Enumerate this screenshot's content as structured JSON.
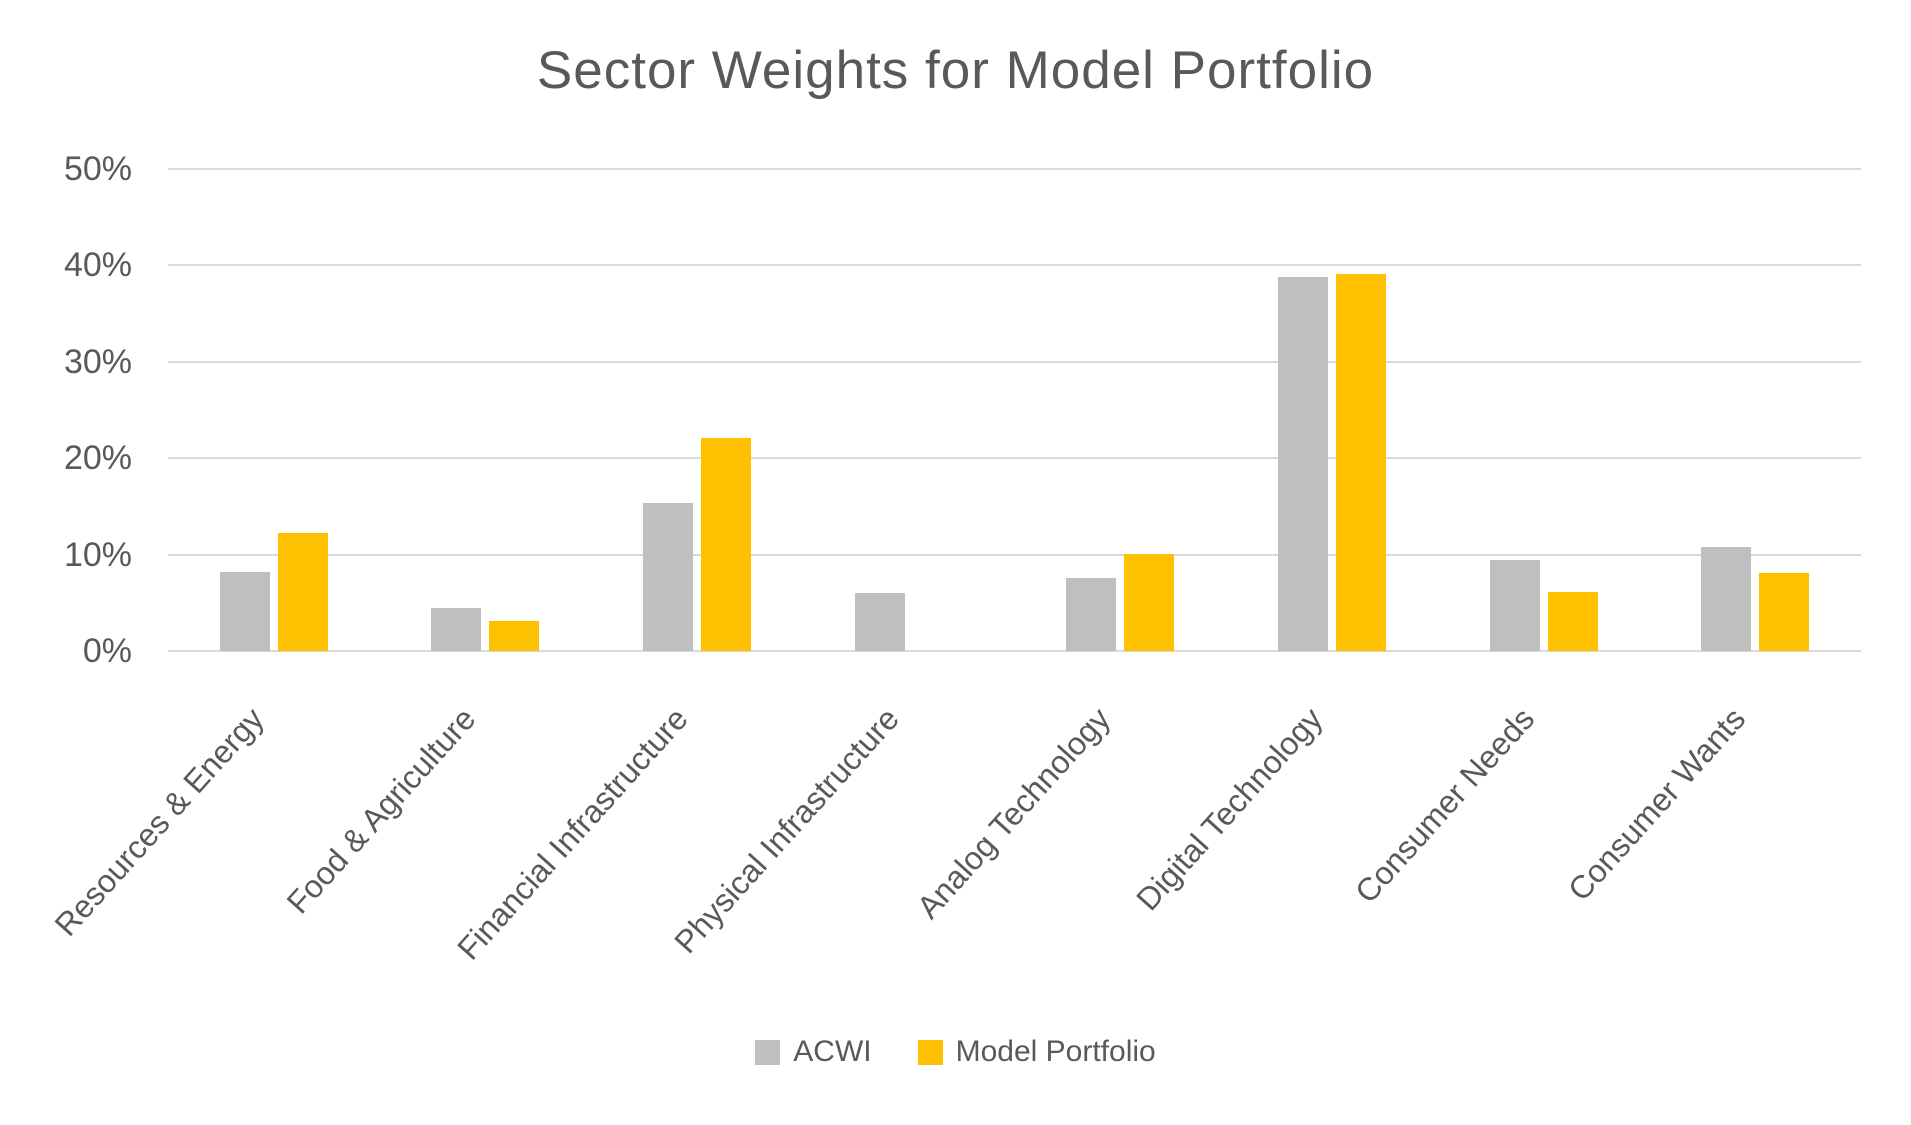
{
  "colors": {
    "background": "#FFFFFF",
    "text": "#595959",
    "gridline": "#D9D9D9",
    "acwi_gray": "#BFBFBF",
    "portfolio_gold": "#FFC000"
  },
  "chart_data": {
    "type": "bar",
    "title": "Sector Weights for Model Portfolio",
    "xlabel": "",
    "ylabel": "",
    "categories": [
      "Resources & Energy",
      "Food & Agriculture",
      "Financial Infrastructure",
      "Physical Infrastructure",
      "Analog Technology",
      "Digital Technology",
      "Consumer Needs",
      "Consumer Wants"
    ],
    "series": [
      {
        "name": "ACWI",
        "color": "#BFBFBF",
        "values": [
          8.2,
          4.5,
          15.4,
          6.0,
          7.6,
          38.8,
          9.4,
          10.8
        ]
      },
      {
        "name": "Model Portfolio",
        "color": "#FFC000",
        "values": [
          12.2,
          3.1,
          22.1,
          0.0,
          10.1,
          39.1,
          6.1,
          8.1
        ]
      }
    ],
    "ylim": [
      0,
      50
    ],
    "y_tick_step": 10,
    "y_tick_labels": [
      "0%",
      "10%",
      "20%",
      "30%",
      "40%",
      "50%"
    ],
    "grid": true,
    "legend_position": "bottom"
  }
}
